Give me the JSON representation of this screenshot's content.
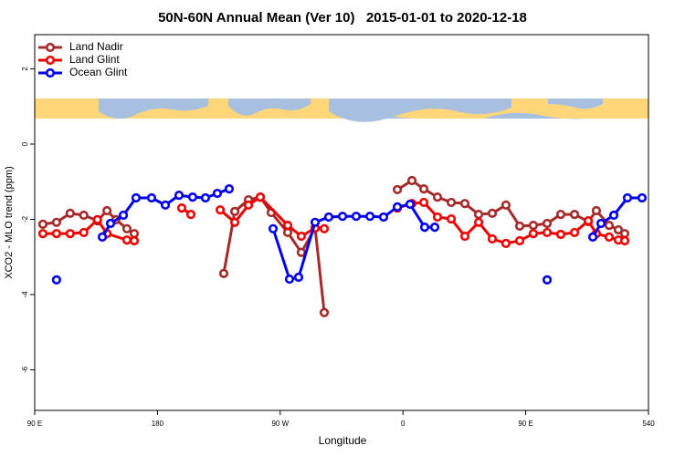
{
  "chart_data": {
    "type": "line",
    "title": "50N-60N Annual Mean (Ver 10)   2015-01-01 to 2020-12-18",
    "xlabel": "Longitude",
    "ylabel": "XCO2 - MLO trend (ppm)",
    "xlim": [
      90,
      540
    ],
    "ylim": [
      -7.08,
      2.91
    ],
    "xticks": [
      {
        "value": 90,
        "label": "90 E"
      },
      180,
      {
        "value": 270,
        "label": "90 W"
      },
      {
        "value": 360,
        "label": "0"
      },
      {
        "value": 450,
        "label": "90 E"
      },
      540
    ],
    "yticks": [
      2,
      0,
      -2,
      -4,
      -6
    ],
    "legend": "top-left",
    "series": [
      {
        "name": "Land Nadir",
        "color": "#a52a2a",
        "x": [
          96,
          106,
          116,
          126,
          136,
          143,
          149.6,
          157.6,
          163,
          null,
          228.6,
          236.7,
          246.7,
          255.4,
          263.4,
          275.5,
          285.5,
          295.6,
          302.3,
          null,
          355.9,
          366.6,
          375.3,
          385.3,
          395.4,
          405.4,
          415.5,
          425.5,
          435.5,
          445.6,
          455.6,
          465.7,
          475.7,
          485.8,
          495.9,
          501.8,
          511.2,
          517.9,
          522.6
        ],
        "values": [
          -2.13,
          -2.08,
          -1.84,
          -1.89,
          -2.04,
          -1.77,
          -2.01,
          -2.25,
          -2.38,
          null,
          -3.44,
          -1.79,
          -1.48,
          -1.41,
          -1.82,
          -2.35,
          -2.88,
          -2.23,
          -4.48,
          null,
          -1.21,
          -0.97,
          -1.19,
          -1.41,
          -1.55,
          -1.58,
          -1.87,
          -1.84,
          -1.62,
          -2.18,
          -2.16,
          -2.11,
          -1.87,
          -1.87,
          -2.06,
          -1.77,
          -2.16,
          -2.28,
          -2.38
        ]
      },
      {
        "name": "Land Glint",
        "color": "#ee0000",
        "x": [
          96,
          106,
          116,
          126,
          136,
          143,
          157.6,
          163,
          null,
          197.8,
          204.5,
          null,
          226,
          236.7,
          246.7,
          255.4,
          275.5,
          285.5,
          295.6,
          302.3,
          null,
          355.9,
          366.6,
          375.3,
          385.3,
          395.4,
          405.4,
          415.5,
          425.5,
          435.5,
          445.6,
          455.6,
          465.7,
          475.7,
          485.8,
          495.9,
          501.8,
          511.2,
          517.9,
          522.6
        ],
        "values": [
          -2.38,
          -2.38,
          -2.38,
          -2.35,
          -2.01,
          -2.38,
          -2.55,
          -2.57,
          null,
          -1.7,
          -1.87,
          null,
          -1.75,
          -2.08,
          -1.62,
          -1.41,
          -2.16,
          -2.45,
          -2.23,
          -2.25,
          null,
          -1.7,
          -1.58,
          -1.55,
          -1.94,
          -1.99,
          -2.45,
          -2.08,
          -2.52,
          -2.64,
          -2.57,
          -2.38,
          -2.35,
          -2.4,
          -2.35,
          -2.04,
          -2.38,
          -2.47,
          -2.55,
          -2.57
        ]
      },
      {
        "name": "Ocean Glint",
        "color": "#0000ee",
        "x": [
          106,
          null,
          139.6,
          145.6,
          155,
          164.3,
          175.7,
          185.8,
          195.8,
          205.8,
          215.2,
          223.9,
          232.6,
          null,
          264.8,
          276.8,
          283.5,
          295.6,
          305.6,
          315.7,
          325.7,
          335.8,
          345.8,
          355.9,
          365.2,
          375.9,
          383.3,
          null,
          465.7,
          null,
          499.2,
          505.2,
          514.6,
          524.6,
          535.3
        ],
        "values": [
          -3.61,
          null,
          -2.47,
          -2.11,
          -1.89,
          -1.43,
          -1.43,
          -1.62,
          -1.36,
          -1.41,
          -1.43,
          -1.31,
          -1.19,
          null,
          -2.25,
          -3.59,
          -3.54,
          -2.08,
          -1.94,
          -1.92,
          -1.92,
          -1.92,
          -1.94,
          -1.67,
          -1.6,
          -2.21,
          -2.21,
          null,
          -3.61,
          null,
          -2.47,
          -2.11,
          -1.89,
          -1.43,
          -1.43
        ]
      }
    ]
  }
}
